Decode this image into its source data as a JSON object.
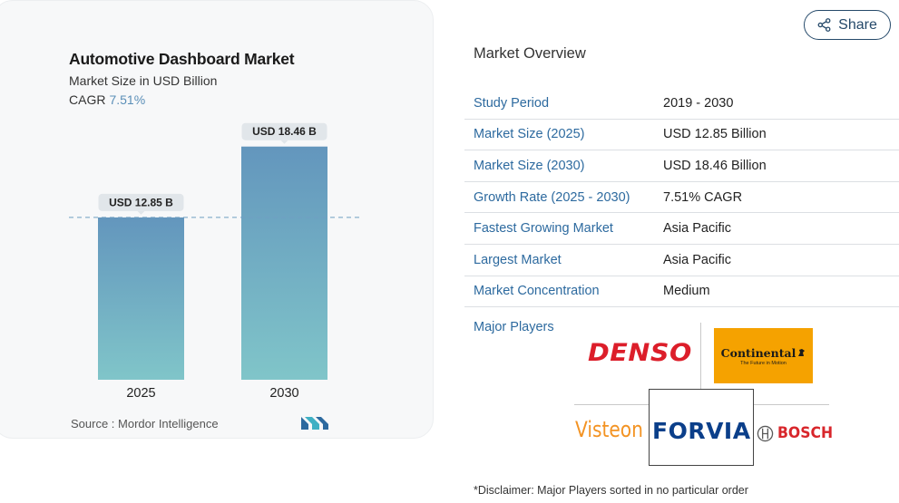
{
  "chart_data": {
    "type": "bar",
    "title": "Automotive Dashboard Market",
    "subtitle": "Market Size in USD Billion",
    "cagr_label": "CAGR",
    "cagr_value": "7.51%",
    "categories": [
      "2025",
      "2030"
    ],
    "values": [
      12.85,
      18.46
    ],
    "data_labels": [
      "USD 12.85 B",
      "USD 18.46 B"
    ],
    "ylim": [
      0,
      19.3
    ],
    "reference_line_value": 12.85,
    "bar_gradient": [
      "#6396bd",
      "#80c5c9"
    ],
    "source": "Source :  Mordor Intelligence"
  },
  "share": {
    "label": "Share",
    "icon": "share-icon"
  },
  "overview": {
    "title": "Market Overview",
    "rows": [
      {
        "label": "Study Period",
        "value": "2019 - 2030"
      },
      {
        "label": "Market Size (2025)",
        "value": "USD 12.85 Billion"
      },
      {
        "label": "Market Size (2030)",
        "value": "USD 18.46 Billion"
      },
      {
        "label": "Growth Rate (2025 - 2030)",
        "value": "7.51% CAGR"
      },
      {
        "label": "Fastest Growing Market",
        "value": "Asia Pacific"
      },
      {
        "label": "Largest Market",
        "value": "Asia Pacific"
      },
      {
        "label": "Market Concentration",
        "value": "Medium"
      }
    ]
  },
  "major_players": {
    "label": "Major Players",
    "logos": {
      "denso": "DENSO",
      "continental": "Continental",
      "continental_tagline": "The Future in Motion",
      "visteon": "Visteon",
      "forvia": "FORVIA",
      "bosch": "BOSCH"
    }
  },
  "disclaimer": "*Disclaimer: Major Players sorted in no particular order",
  "colors": {
    "label_blue": "#2d6a9f",
    "cagr_blue": "#5b8fb8",
    "share_navy": "#25496a"
  }
}
